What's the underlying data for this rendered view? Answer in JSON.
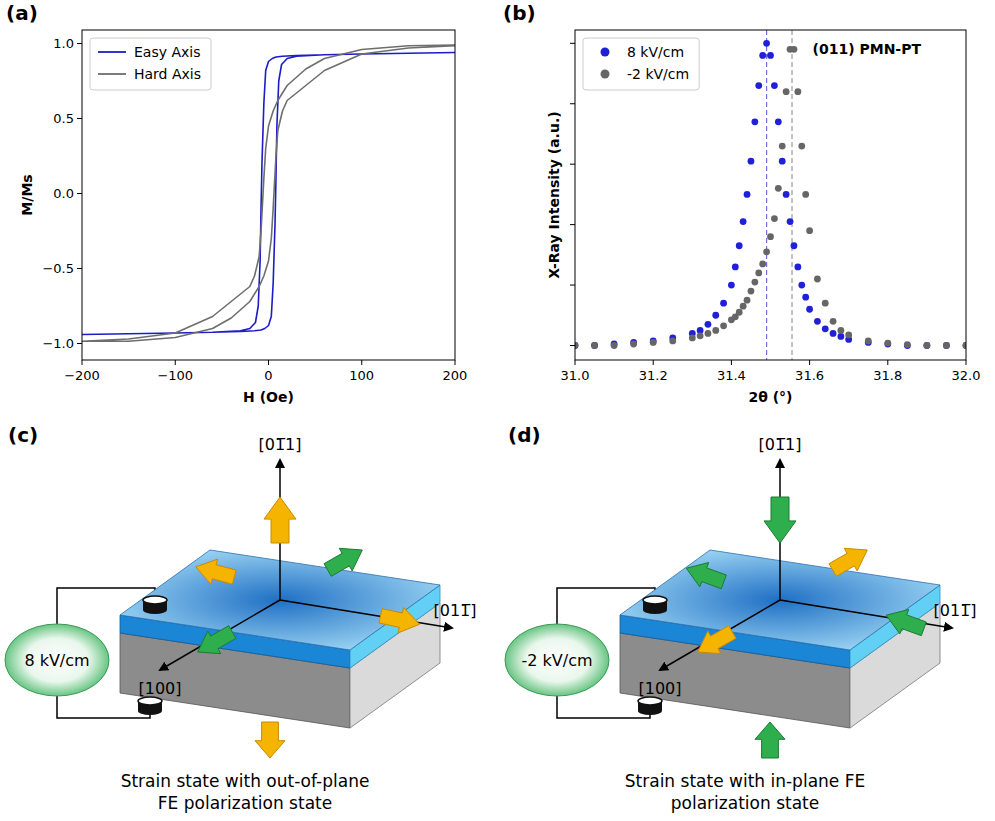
{
  "chart_data": [
    {
      "type": "line",
      "panel_label": "(a)",
      "x_label": "H (Oe)",
      "y_label": "M/Ms",
      "xlim": [
        -200,
        200
      ],
      "xticks": [
        {
          "value": -200,
          "label": "−200"
        },
        {
          "value": -100,
          "label": "−100"
        },
        0,
        100,
        200
      ],
      "ylim": [
        -1.11,
        1.09
      ],
      "yticks": [
        {
          "value": -1,
          "label": "−1.0"
        },
        {
          "value": -0.5,
          "label": "−0.5"
        },
        {
          "value": 0,
          "label": "0.0"
        },
        {
          "value": 0.5,
          "label": "0.5"
        },
        {
          "value": 1,
          "label": "1.0"
        }
      ],
      "grid": false,
      "legend": "upper left",
      "series": [
        {
          "name": "Easy Axis",
          "color": "#1c1cc8",
          "line_style": "solid",
          "marker": "none",
          "x": [
            200,
            150,
            100,
            60,
            30,
            15,
            8,
            4,
            0,
            -3,
            -5,
            -7,
            -8,
            -9,
            -11,
            -14,
            -20,
            -30,
            -60,
            -100,
            -150,
            -200,
            -150,
            -100,
            -60,
            -30,
            -15,
            -8,
            -4,
            0,
            3,
            5,
            7,
            8,
            9,
            11,
            14,
            20,
            30,
            60,
            100,
            150,
            200
          ],
          "values": [
            0.94,
            0.935,
            0.93,
            0.925,
            0.92,
            0.915,
            0.91,
            0.9,
            0.88,
            0.82,
            0.6,
            0.2,
            -0.1,
            -0.45,
            -0.75,
            -0.86,
            -0.9,
            -0.915,
            -0.925,
            -0.93,
            -0.935,
            -0.94,
            -0.935,
            -0.93,
            -0.925,
            -0.92,
            -0.915,
            -0.91,
            -0.9,
            -0.88,
            -0.82,
            -0.6,
            -0.2,
            0.1,
            0.45,
            0.75,
            0.86,
            0.9,
            0.915,
            0.925,
            0.93,
            0.935,
            0.94
          ]
        },
        {
          "name": "Hard Axis",
          "color": "#6e6e6e",
          "line_style": "solid",
          "marker": "none",
          "x": [
            200,
            150,
            100,
            60,
            40,
            20,
            10,
            5,
            0,
            -3,
            -5,
            -8,
            -10,
            -15,
            -20,
            -40,
            -60,
            -100,
            -150,
            -200,
            -150,
            -100,
            -60,
            -40,
            -20,
            -10,
            -5,
            0,
            3,
            5,
            8,
            10,
            15,
            20,
            40,
            60,
            100,
            150,
            200
          ],
          "values": [
            0.99,
            0.985,
            0.96,
            0.9,
            0.83,
            0.72,
            0.62,
            0.55,
            0.45,
            0.3,
            0.1,
            -0.25,
            -0.42,
            -0.55,
            -0.62,
            -0.72,
            -0.82,
            -0.93,
            -0.97,
            -0.985,
            -0.985,
            -0.96,
            -0.9,
            -0.83,
            -0.72,
            -0.62,
            -0.55,
            -0.45,
            -0.3,
            -0.1,
            0.25,
            0.42,
            0.55,
            0.62,
            0.72,
            0.82,
            0.93,
            0.97,
            0.985
          ]
        }
      ]
    },
    {
      "type": "scatter",
      "panel_label": "(b)",
      "x_label": "2θ (°)",
      "y_label": "X-Ray Intensity (a.u.)",
      "annotation": "(011) PMN-PT",
      "xlim": [
        31,
        32
      ],
      "xticks": [
        {
          "value": 31,
          "label": "31.0"
        },
        {
          "value": 31.2,
          "label": "31.2"
        },
        {
          "value": 31.4,
          "label": "31.4"
        },
        {
          "value": 31.6,
          "label": "31.6"
        },
        {
          "value": 31.8,
          "label": "31.8"
        },
        {
          "value": 32,
          "label": "32.0"
        }
      ],
      "ylim": [
        -0.048,
        1.044
      ],
      "yticks": [
        0,
        0.2,
        0.4,
        0.6,
        0.8,
        1
      ],
      "tick_labels": "x",
      "grid": false,
      "legend": "upper left",
      "x": [
        31,
        31.05,
        31.1,
        31.15,
        31.2,
        31.25,
        31.3,
        31.32,
        31.34,
        31.36,
        31.38,
        31.4,
        31.41,
        31.42,
        31.43,
        31.44,
        31.45,
        31.46,
        31.47,
        31.48,
        31.49,
        31.5,
        31.51,
        31.52,
        31.53,
        31.54,
        31.55,
        31.56,
        31.57,
        31.58,
        31.59,
        31.6,
        31.62,
        31.64,
        31.66,
        31.68,
        31.7,
        31.75,
        31.8,
        31.85,
        31.9,
        31.95,
        32
      ],
      "series": [
        {
          "name": "8 kV/cm",
          "color": "#2020d8",
          "marker": "circle",
          "line_style": "none",
          "peak": 31.49,
          "values": [
            0,
            0,
            0.005,
            0.01,
            0.015,
            0.025,
            0.04,
            0.05,
            0.07,
            0.1,
            0.14,
            0.2,
            0.26,
            0.33,
            0.41,
            0.5,
            0.61,
            0.74,
            0.86,
            0.96,
            1,
            0.96,
            0.86,
            0.74,
            0.61,
            0.5,
            0.41,
            0.33,
            0.26,
            0.2,
            0.16,
            0.12,
            0.08,
            0.055,
            0.04,
            0.03,
            0.02,
            0.01,
            0.005,
            0,
            0,
            0,
            0
          ]
        },
        {
          "name": "-2 kV/cm",
          "color": "#666666",
          "marker": "circle",
          "line_style": "none",
          "peak": 31.555,
          "values": [
            0,
            0,
            0,
            0.005,
            0.01,
            0.015,
            0.025,
            0.032,
            0.04,
            0.05,
            0.065,
            0.085,
            0.095,
            0.11,
            0.13,
            0.15,
            0.18,
            0.21,
            0.24,
            0.27,
            0.31,
            0.36,
            0.42,
            0.52,
            0.66,
            0.84,
            0.98,
            0.98,
            0.84,
            0.66,
            0.5,
            0.38,
            0.22,
            0.14,
            0.08,
            0.05,
            0.035,
            0.015,
            0.008,
            0.003,
            0,
            0,
            0
          ]
        }
      ]
    }
  ],
  "diagrams": [
    {
      "panel_label": "(c)",
      "voltage": "8 kV/cm",
      "axis_labels": {
        "up": "[01̅1]",
        "front": "[100]",
        "right": "[011̅]"
      },
      "caption": [
        "Strain state with out-of-plane",
        "FE polarization state"
      ]
    },
    {
      "panel_label": "(d)",
      "voltage": "-2 kV/cm",
      "axis_labels": {
        "up": "[01̅1]",
        "front": "[100]",
        "right": "[011̅]"
      },
      "caption": [
        "Strain state with in-plane FE",
        "polarization state"
      ]
    }
  ]
}
